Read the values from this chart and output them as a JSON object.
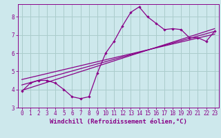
{
  "xlabel": "Windchill (Refroidissement éolien,°C)",
  "bg_color": "#cde8ec",
  "line_color": "#880088",
  "grid_color": "#aacccc",
  "spine_color": "#880088",
  "xlim": [
    -0.5,
    23.5
  ],
  "ylim": [
    3,
    8.7
  ],
  "yticks": [
    3,
    4,
    5,
    6,
    7,
    8
  ],
  "xticks": [
    0,
    1,
    2,
    3,
    4,
    5,
    6,
    7,
    8,
    9,
    10,
    11,
    12,
    13,
    14,
    15,
    16,
    17,
    18,
    19,
    20,
    21,
    22,
    23
  ],
  "data_x": [
    0,
    1,
    2,
    3,
    4,
    5,
    6,
    7,
    8,
    9,
    10,
    11,
    12,
    13,
    14,
    15,
    16,
    17,
    18,
    19,
    20,
    21,
    22,
    23
  ],
  "data_y": [
    3.9,
    4.35,
    4.5,
    4.5,
    4.35,
    4.0,
    3.6,
    3.5,
    3.6,
    4.9,
    6.0,
    6.65,
    7.5,
    8.25,
    8.55,
    8.0,
    7.65,
    7.3,
    7.35,
    7.3,
    6.85,
    6.85,
    6.65,
    7.2
  ],
  "trend_lines": [
    [
      3.95,
      7.35
    ],
    [
      4.25,
      7.2
    ],
    [
      4.55,
      7.05
    ]
  ],
  "tick_fontsize": 5.5,
  "label_fontsize": 6.5
}
